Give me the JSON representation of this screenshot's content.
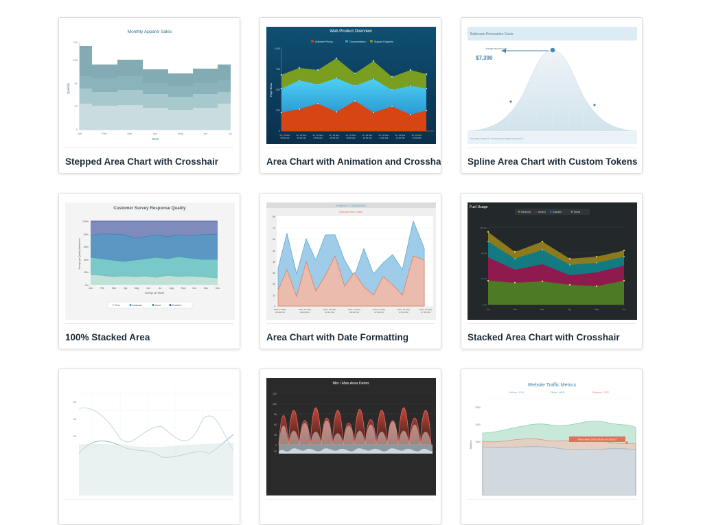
{
  "cards": [
    {
      "title": "Stepped Area Chart with Crosshair",
      "chart_title": "Monthly Apparel Sales",
      "ylabel": "Quantity",
      "xlabel": "2013",
      "yticks": [
        "0",
        "40",
        "80",
        "120",
        "150"
      ],
      "xticks": [
        "Jan",
        "Feb",
        "Mar",
        "Apr",
        "May",
        "Jun",
        "Jul"
      ]
    },
    {
      "title": "Area Chart with Animation and Crosshair",
      "chart_title": "Web Product Overview",
      "legend": [
        "Software Pricing",
        "Documentation",
        "Support Enquiries"
      ],
      "ylabel": "Page Views",
      "yticks": [
        "0",
        "250",
        "500",
        "750",
        "1,000"
      ]
    },
    {
      "title": "Spline Area Chart with Custom Tokens",
      "chart_title": "Bathroom Renovation Costs",
      "annotation_label": "Average reported cost",
      "annotation_value": "$7,390",
      "footer": "Cost data is based on surveys of five Design homeowners"
    },
    {
      "title": "100% Stacked Area",
      "chart_title": "Customer Survey Response Quality",
      "ylabel": "Surveys per Quality Satisfaction",
      "xlabel": "Surveys per Month",
      "yticks": [
        "0%",
        "20%",
        "40%",
        "60%",
        "80%",
        "100%"
      ],
      "xticks": [
        "Jan",
        "Feb",
        "Mar",
        "Apr",
        "May",
        "Jun",
        "Jul",
        "Aug",
        "Sept",
        "Oct",
        "Nov",
        "Dec"
      ],
      "legend": [
        "Poor",
        "Moderate",
        "Good",
        "Excellent"
      ]
    },
    {
      "title": "Area Chart with Date Formatting",
      "chart_title": "Analytics Comparison",
      "subtitle": "National Web Traffic",
      "yticks": [
        "0",
        "10",
        "20",
        "30",
        "40",
        "50",
        "60",
        "70",
        "80"
      ]
    },
    {
      "title": "Stacked Area Chart with Crosshair",
      "chart_title": "Fuel Usage",
      "legend": [
        "Electricity",
        "Alcohol",
        "Gasoline",
        "Diesel"
      ],
      "xticks": [
        "Jan",
        "Feb",
        "Mar",
        "Apr",
        "May",
        "Jun"
      ]
    },
    {
      "title": "",
      "yticks": [
        "30",
        "40",
        "50"
      ]
    },
    {
      "title": "",
      "chart_title": "Min / Max Area Demo",
      "yticks": [
        "-20",
        "0",
        "20",
        "40",
        "60",
        "80",
        "100",
        "120"
      ]
    },
    {
      "title": "",
      "chart_title": "Website Traffic Metrics",
      "legend": [
        "Visitors: 1116",
        "Clicks: 1408",
        "Returns: 1202"
      ],
      "tooltip": "There were 1202 returns on Sept 27",
      "ylabel": "Metrics",
      "yticks": [
        "1500",
        "2000",
        "2500"
      ]
    }
  ],
  "colors": {
    "teal": "#5b9aa5",
    "navy_bg": "#154b72",
    "orange": "#d64512",
    "blue": "#2a9bd8",
    "olive": "#7a9e1f",
    "purple": "#6f7fb8",
    "cyan": "#62c3c9",
    "dark_bg": "#23282b",
    "maroon": "#a31a55"
  }
}
